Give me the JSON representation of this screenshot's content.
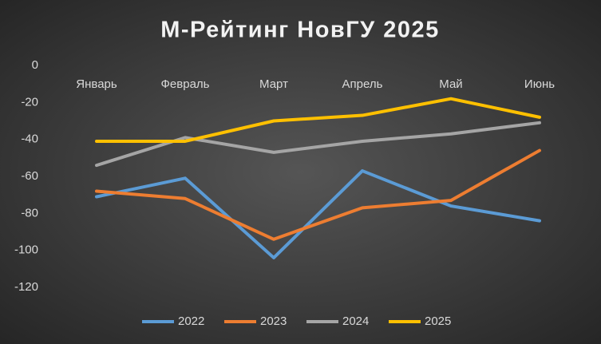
{
  "chart_data": {
    "type": "line",
    "title": "М-Рейтинг НовГУ 2025",
    "categories": [
      "Январь",
      "Февраль",
      "Март",
      "Апрель",
      "Май",
      "Июнь"
    ],
    "series": [
      {
        "name": "2022",
        "color": "#5b9bd5",
        "values": [
          -71,
          -61,
          -104,
          -57,
          -76,
          -84
        ]
      },
      {
        "name": "2023",
        "color": "#ed7d31",
        "values": [
          -68,
          -72,
          -94,
          -77,
          -73,
          -46
        ]
      },
      {
        "name": "2024",
        "color": "#a5a5a5",
        "values": [
          -54,
          -39,
          -47,
          -41,
          -37,
          -31
        ]
      },
      {
        "name": "2025",
        "color": "#ffc000",
        "values": [
          -41,
          -41,
          -30,
          -27,
          -18,
          -28
        ]
      }
    ],
    "ylim": [
      -120,
      0
    ],
    "yticks": [
      0,
      -20,
      -40,
      -60,
      -80,
      -100,
      -120
    ],
    "grid": false,
    "legend": "bottom"
  }
}
